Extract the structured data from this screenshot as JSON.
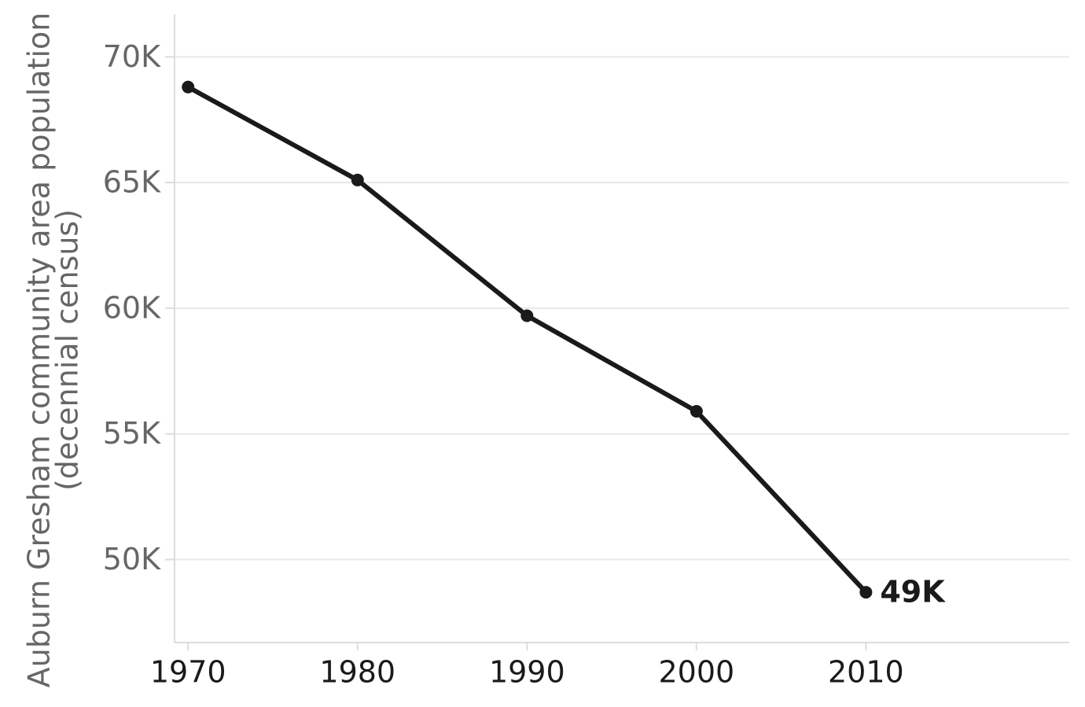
{
  "chart_data": {
    "type": "line",
    "ylabel": [
      "Auburn Gresham community area population",
      "(decennial census)"
    ],
    "x": [
      1970,
      1980,
      1990,
      2000,
      2010
    ],
    "values": [
      68800,
      65100,
      59700,
      55900,
      48700
    ],
    "value_labels": [
      null,
      null,
      null,
      null,
      "49K"
    ],
    "color": "#1a1a1a",
    "xlim": [
      1969.2,
      2022
    ],
    "xticks": [
      1970,
      1980,
      1990,
      2000,
      2010
    ],
    "ylim": [
      46700,
      71700
    ],
    "yticks": [
      {
        "value": 50000,
        "label": "50K"
      },
      {
        "value": 55000,
        "label": "55K"
      },
      {
        "value": 60000,
        "label": "60K"
      },
      {
        "value": 65000,
        "label": "65K"
      },
      {
        "value": 70000,
        "label": "70K"
      }
    ],
    "grid": true
  }
}
